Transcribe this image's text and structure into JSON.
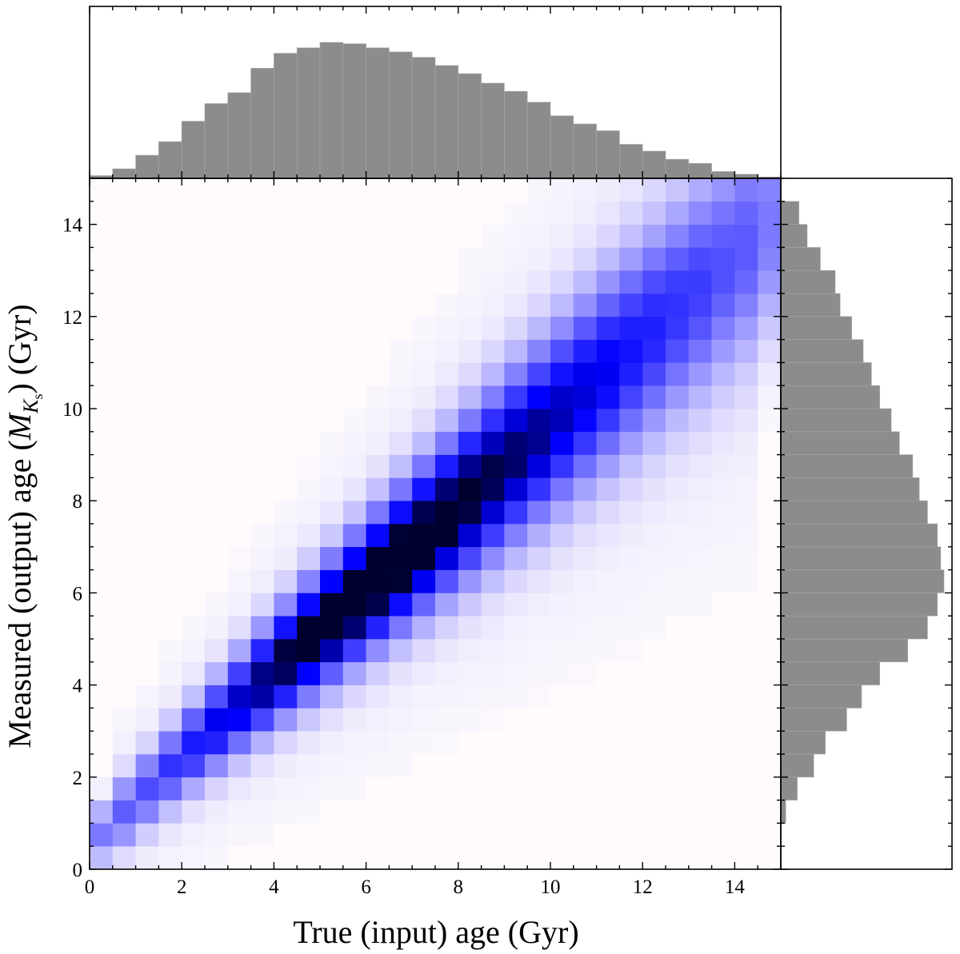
{
  "chart_data": [
    {
      "type": "heatmap",
      "title": "",
      "xlabel": "True (input) age  (Gyr)",
      "ylabel_prefix": "Measured (output) age  (",
      "ylabel_symbol": "M",
      "ylabel_subscript": "K",
      "ylabel_subsubscript": "s",
      "ylabel_suffix": ")  (Gyr)",
      "xlim": [
        0,
        15
      ],
      "ylim": [
        0,
        15
      ],
      "xticks": [
        "0",
        "2",
        "4",
        "6",
        "8",
        "10",
        "12",
        "14"
      ],
      "yticks": [
        "0",
        "2",
        "4",
        "6",
        "8",
        "10",
        "12",
        "14"
      ],
      "bin_width_gyr": 0.5,
      "colormap": "white-to-blue-to-navy",
      "low_color": "#fffbfd",
      "mid_color": "#0000ff",
      "high_color": "#00002e",
      "ridge": "measured age follows true age with growing spread at older ages"
    },
    {
      "type": "bar",
      "name": "true-age-histogram",
      "color": "#8c8c8c",
      "bin_width_gyr": 0.5,
      "bin_edges_start": 0,
      "values": [
        0.02,
        0.07,
        0.17,
        0.27,
        0.42,
        0.55,
        0.63,
        0.81,
        0.92,
        0.96,
        1.0,
        0.99,
        0.96,
        0.93,
        0.89,
        0.83,
        0.77,
        0.7,
        0.64,
        0.56,
        0.46,
        0.4,
        0.35,
        0.25,
        0.2,
        0.14,
        0.11,
        0.05,
        0.03,
        0.01
      ]
    },
    {
      "type": "bar",
      "orientation": "horizontal",
      "name": "measured-age-histogram",
      "color": "#8c8c8c",
      "bin_width_gyr": 0.5,
      "bin_edges_start": 0,
      "values": [
        0.0,
        0.0,
        0.03,
        0.1,
        0.2,
        0.27,
        0.4,
        0.49,
        0.6,
        0.77,
        0.89,
        0.95,
        0.99,
        0.97,
        0.95,
        0.89,
        0.84,
        0.8,
        0.72,
        0.67,
        0.6,
        0.55,
        0.5,
        0.43,
        0.36,
        0.33,
        0.24,
        0.16,
        0.11,
        0.0
      ]
    }
  ]
}
